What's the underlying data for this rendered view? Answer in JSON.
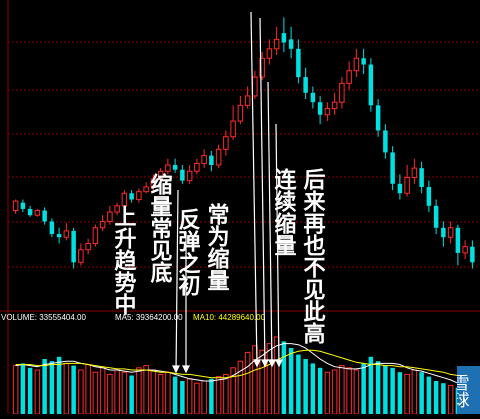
{
  "chart_data": [
    {
      "type": "candlestick",
      "colors": {
        "up": "#ff2a2a",
        "down": "#00e0e0",
        "grid": "#8b0000",
        "annotation": "#ffffff"
      },
      "candles": [
        {
          "o": 233,
          "c": 239,
          "h": 240,
          "l": 231
        },
        {
          "o": 238,
          "c": 234,
          "h": 240,
          "l": 232
        },
        {
          "o": 234,
          "c": 230,
          "h": 236,
          "l": 229
        },
        {
          "o": 230,
          "c": 233,
          "h": 234,
          "l": 229
        },
        {
          "o": 233,
          "c": 226,
          "h": 235,
          "l": 224
        },
        {
          "o": 226,
          "c": 218,
          "h": 228,
          "l": 216
        },
        {
          "o": 218,
          "c": 216,
          "h": 222,
          "l": 212
        },
        {
          "o": 216,
          "c": 220,
          "h": 225,
          "l": 214
        },
        {
          "o": 220,
          "c": 200,
          "h": 222,
          "l": 196
        },
        {
          "o": 200,
          "c": 208,
          "h": 212,
          "l": 198
        },
        {
          "o": 208,
          "c": 212,
          "h": 215,
          "l": 205
        },
        {
          "o": 212,
          "c": 222,
          "h": 224,
          "l": 210
        },
        {
          "o": 222,
          "c": 226,
          "h": 230,
          "l": 220
        },
        {
          "o": 226,
          "c": 232,
          "h": 236,
          "l": 224
        },
        {
          "o": 232,
          "c": 236,
          "h": 238,
          "l": 230
        },
        {
          "o": 236,
          "c": 244,
          "h": 246,
          "l": 234
        },
        {
          "o": 244,
          "c": 240,
          "h": 246,
          "l": 238
        },
        {
          "o": 240,
          "c": 245,
          "h": 247,
          "l": 238
        },
        {
          "o": 245,
          "c": 248,
          "h": 251,
          "l": 244
        },
        {
          "o": 248,
          "c": 253,
          "h": 256,
          "l": 246
        },
        {
          "o": 253,
          "c": 258,
          "h": 260,
          "l": 251
        },
        {
          "o": 258,
          "c": 262,
          "h": 266,
          "l": 256
        },
        {
          "o": 262,
          "c": 259,
          "h": 266,
          "l": 257
        },
        {
          "o": 259,
          "c": 252,
          "h": 262,
          "l": 250
        },
        {
          "o": 252,
          "c": 258,
          "h": 262,
          "l": 250
        },
        {
          "o": 258,
          "c": 263,
          "h": 266,
          "l": 256
        },
        {
          "o": 263,
          "c": 268,
          "h": 272,
          "l": 260
        },
        {
          "o": 268,
          "c": 262,
          "h": 271,
          "l": 258
        },
        {
          "o": 262,
          "c": 272,
          "h": 275,
          "l": 260
        },
        {
          "o": 272,
          "c": 280,
          "h": 284,
          "l": 268
        },
        {
          "o": 280,
          "c": 290,
          "h": 300,
          "l": 278
        },
        {
          "o": 290,
          "c": 300,
          "h": 306,
          "l": 288
        },
        {
          "o": 300,
          "c": 306,
          "h": 312,
          "l": 298
        },
        {
          "o": 306,
          "c": 318,
          "h": 322,
          "l": 304
        },
        {
          "o": 318,
          "c": 330,
          "h": 334,
          "l": 316
        },
        {
          "o": 330,
          "c": 336,
          "h": 342,
          "l": 326
        },
        {
          "o": 336,
          "c": 342,
          "h": 350,
          "l": 332
        },
        {
          "o": 346,
          "c": 340,
          "h": 356,
          "l": 334
        },
        {
          "o": 342,
          "c": 336,
          "h": 350,
          "l": 330
        },
        {
          "o": 336,
          "c": 318,
          "h": 342,
          "l": 314
        },
        {
          "o": 318,
          "c": 308,
          "h": 324,
          "l": 304
        },
        {
          "o": 308,
          "c": 302,
          "h": 312,
          "l": 298
        },
        {
          "o": 302,
          "c": 294,
          "h": 306,
          "l": 288
        },
        {
          "o": 294,
          "c": 298,
          "h": 302,
          "l": 290
        },
        {
          "o": 298,
          "c": 302,
          "h": 308,
          "l": 294
        },
        {
          "o": 302,
          "c": 314,
          "h": 318,
          "l": 298
        },
        {
          "o": 314,
          "c": 322,
          "h": 328,
          "l": 310
        },
        {
          "o": 322,
          "c": 330,
          "h": 336,
          "l": 318
        },
        {
          "o": 330,
          "c": 326,
          "h": 336,
          "l": 320
        },
        {
          "o": 326,
          "c": 300,
          "h": 330,
          "l": 296
        },
        {
          "o": 300,
          "c": 284,
          "h": 304,
          "l": 280
        },
        {
          "o": 284,
          "c": 270,
          "h": 288,
          "l": 266
        },
        {
          "o": 270,
          "c": 250,
          "h": 274,
          "l": 246
        },
        {
          "o": 250,
          "c": 244,
          "h": 256,
          "l": 240
        },
        {
          "o": 244,
          "c": 254,
          "h": 262,
          "l": 242
        },
        {
          "o": 254,
          "c": 260,
          "h": 266,
          "l": 250
        },
        {
          "o": 260,
          "c": 248,
          "h": 264,
          "l": 244
        },
        {
          "o": 248,
          "c": 236,
          "h": 252,
          "l": 232
        },
        {
          "o": 236,
          "c": 222,
          "h": 240,
          "l": 218
        },
        {
          "o": 222,
          "c": 216,
          "h": 226,
          "l": 210
        },
        {
          "o": 216,
          "c": 222,
          "h": 226,
          "l": 212
        },
        {
          "o": 222,
          "c": 206,
          "h": 224,
          "l": 198
        },
        {
          "o": 206,
          "c": 210,
          "h": 214,
          "l": 202
        },
        {
          "o": 210,
          "c": 200,
          "h": 214,
          "l": 196
        }
      ],
      "ylim": [
        176,
        362
      ]
    },
    {
      "type": "bar",
      "labels": [
        {
          "name": "VOLUME",
          "value": "33555404.00",
          "color": "#ffffff"
        },
        {
          "name": "MA5",
          "value": "39364200.00",
          "color": "#ffffff"
        },
        {
          "name": "MA10",
          "value": "44289640.00",
          "color": "#ffff00"
        }
      ],
      "volumes": [
        44,
        46,
        42,
        40,
        50,
        48,
        52,
        46,
        44,
        40,
        45,
        38,
        42,
        36,
        40,
        38,
        35,
        42,
        44,
        40,
        36,
        38,
        34,
        30,
        32,
        28,
        30,
        32,
        34,
        36,
        42,
        48,
        56,
        62,
        58,
        64,
        70,
        66,
        60,
        54,
        50,
        46,
        42,
        38,
        40,
        44,
        42,
        40,
        46,
        52,
        48,
        44,
        42,
        38,
        36,
        40,
        38,
        34,
        30,
        28,
        26,
        24,
        22,
        20
      ],
      "ma5": [
        44,
        45,
        44,
        43,
        45,
        46,
        47,
        48,
        48,
        46,
        45,
        43,
        42,
        40,
        40,
        39,
        38,
        39,
        40,
        40,
        39,
        38,
        36,
        34,
        32,
        31,
        30,
        30,
        31,
        32,
        35,
        39,
        43,
        49,
        53,
        58,
        62,
        64,
        64,
        63,
        60,
        55,
        50,
        46,
        43,
        42,
        41,
        41,
        42,
        45,
        46,
        46,
        46,
        45,
        42,
        40,
        39,
        37,
        35,
        33,
        31,
        28,
        26,
        24
      ],
      "ma10": [
        45,
        45,
        45,
        44,
        44,
        45,
        45,
        46,
        46,
        46,
        45,
        44,
        43,
        42,
        41,
        41,
        40,
        40,
        40,
        39,
        38,
        38,
        37,
        36,
        36,
        35,
        34,
        33,
        33,
        33,
        34,
        35,
        37,
        40,
        42,
        45,
        49,
        52,
        55,
        57,
        58,
        58,
        57,
        55,
        53,
        51,
        49,
        47,
        46,
        45,
        45,
        44,
        44,
        43,
        43,
        42,
        41,
        40,
        39,
        38,
        36,
        35,
        33,
        31
      ],
      "ylim": [
        0,
        80
      ]
    }
  ],
  "annotations": [
    "上升趋势中",
    "缩量常见底",
    "反弹之初",
    "常为缩量",
    "连续缩量",
    "后来再也不见此高"
  ],
  "watermark": "雪球"
}
